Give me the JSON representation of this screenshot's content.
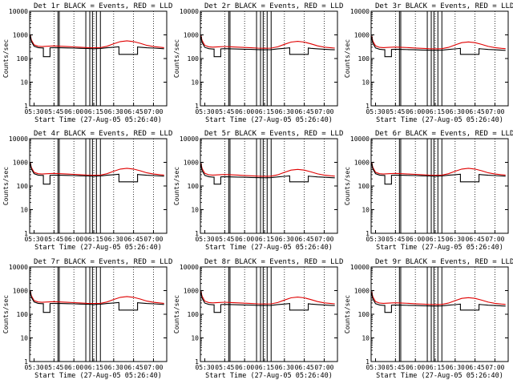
{
  "figure": {
    "layout": "3x3 grid of panels",
    "background": "#ffffff",
    "foreground": "#000000",
    "events_color": "#000000",
    "lld_color": "#e00000"
  },
  "chart_data": [
    {
      "type": "line",
      "title": "Det 1r  BLACK = Events, RED = LLD",
      "ylabel": "Counts/sec",
      "xlabel": "Start Time (27-Aug-05 05:26:40)"
    },
    {
      "type": "line",
      "title": "Det 2r  BLACK = Events, RED = LLD",
      "ylabel": "Counts/sec",
      "xlabel": "Start Time (27-Aug-05 05:26:40)"
    },
    {
      "type": "line",
      "title": "Det 3r  BLACK = Events, RED = LLD",
      "ylabel": "Counts/sec",
      "xlabel": "Start Time (27-Aug-05 05:26:40)"
    },
    {
      "type": "line",
      "title": "Det 4r  BLACK = Events, RED = LLD",
      "ylabel": "Counts/sec",
      "xlabel": "Start Time (27-Aug-05 05:26:40)"
    },
    {
      "type": "line",
      "title": "Det 5r  BLACK = Events, RED = LLD",
      "ylabel": "Counts/sec",
      "xlabel": "Start Time (27-Aug-05 05:26:40)"
    },
    {
      "type": "line",
      "title": "Det 6r  BLACK = Events, RED = LLD",
      "ylabel": "Counts/sec",
      "xlabel": "Start Time (27-Aug-05 05:26:40)"
    },
    {
      "type": "line",
      "title": "Det 7r  BLACK = Events, RED = LLD",
      "ylabel": "Counts/sec",
      "xlabel": "Start Time (27-Aug-05 05:26:40)"
    },
    {
      "type": "line",
      "title": "Det 8r  BLACK = Events, RED = LLD",
      "ylabel": "Counts/sec",
      "xlabel": "Start Time (27-Aug-05 05:26:40)"
    },
    {
      "type": "line",
      "title": "Det 9r  BLACK = Events, RED = LLD",
      "ylabel": "Counts/sec",
      "xlabel": "Start Time (27-Aug-05 05:26:40)"
    }
  ],
  "shared_axes": {
    "x_type": "time",
    "x_range": [
      "05:26:40",
      "07:10"
    ],
    "x_ticks": [
      "05:30",
      "05:45",
      "06:00",
      "06:15",
      "06:30",
      "06:45",
      "07:00"
    ],
    "x_gridlines": "dotted at 05:45, 06:00, 06:15, 06:30, 06:45, 07:00",
    "y_scale": "log",
    "y_range": [
      1,
      10000
    ],
    "y_ticks": [
      "1",
      "10",
      "100",
      "1000",
      "10000"
    ]
  },
  "series_template": {
    "x": [
      "05:27",
      "05:28",
      "05:30",
      "05:33",
      "05:36",
      "05:40",
      "05:45",
      "05:50",
      "05:55",
      "06:00",
      "06:05",
      "06:10",
      "06:15",
      "06:20",
      "06:25",
      "06:30",
      "06:35",
      "06:40",
      "06:45",
      "06:50",
      "06:55",
      "07:00",
      "07:05",
      "07:08"
    ],
    "lld": [
      1000,
      600,
      380,
      330,
      320,
      330,
      340,
      330,
      320,
      310,
      300,
      290,
      285,
      290,
      330,
      420,
      520,
      560,
      520,
      440,
      360,
      320,
      300,
      290
    ],
    "events": [
      900,
      520,
      330,
      290,
      280,
      280,
      290,
      285,
      280,
      275,
      270,
      265,
      260,
      265,
      285,
      300,
      320,
      330,
      320,
      300,
      285,
      275,
      265,
      260
    ],
    "events_dip_low": {
      "x_range": [
        "05:37",
        "05:42"
      ],
      "value": 120
    },
    "events_dip_high": {
      "x_range": [
        "06:34",
        "06:48"
      ],
      "value": 150
    },
    "vertical_spikes": [
      "05:48",
      "05:49",
      "06:09",
      "06:12",
      "06:14",
      "06:17",
      "06:20"
    ]
  },
  "variation": {
    "lld_scale": [
      1.0,
      0.95,
      0.9,
      1.0,
      0.9,
      1.0,
      1.0,
      0.95,
      0.9
    ],
    "events_scale": [
      1.0,
      0.9,
      0.85,
      1.0,
      0.85,
      1.0,
      1.0,
      0.9,
      0.85
    ]
  }
}
